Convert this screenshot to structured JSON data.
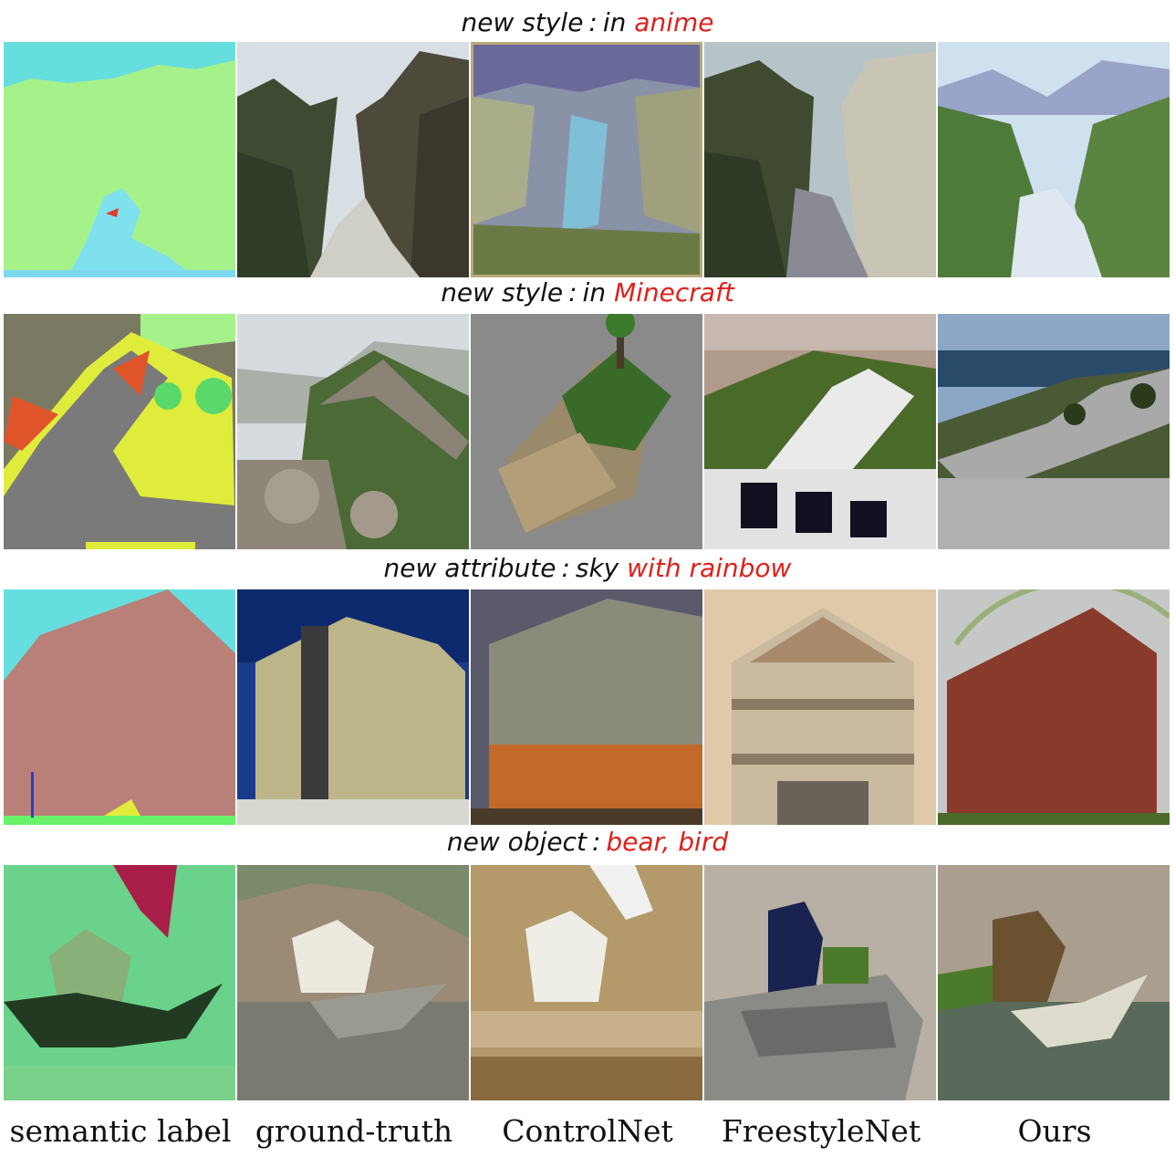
{
  "rows": [
    {
      "prefix": "new style",
      "sep": ":",
      "normal": "in",
      "highlight": "anime"
    },
    {
      "prefix": "new style",
      "sep": ":",
      "normal": "in",
      "highlight": "Minecraft"
    },
    {
      "prefix": "new attribute",
      "sep": ":",
      "normal": "sky",
      "highlight": "with rainbow"
    },
    {
      "prefix": "new object",
      "sep": ":",
      "normal": "",
      "highlight": "bear, bird"
    }
  ],
  "columns": [
    "semantic label",
    "ground-truth",
    "ControlNet",
    "FreestyleNet",
    "Ours"
  ],
  "colors": {
    "highlight": "#e0201b",
    "text": "#111111"
  }
}
